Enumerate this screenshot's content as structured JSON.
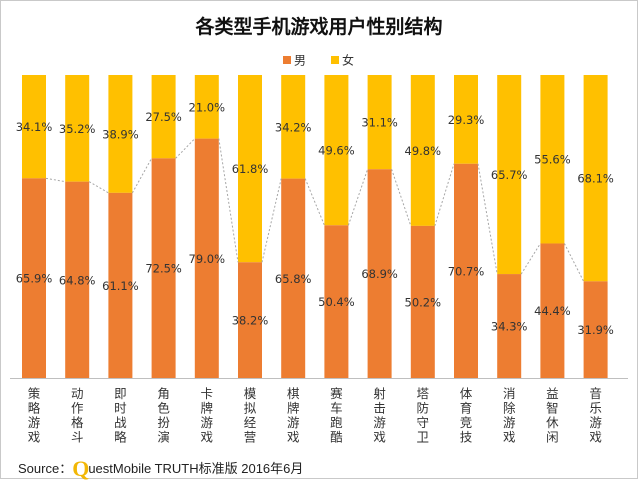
{
  "chart_data": {
    "type": "bar",
    "stacked": true,
    "percent": true,
    "title": "各类型手机游戏用户性别结构",
    "categories": [
      "策略游戏",
      "动作格斗",
      "即时战略",
      "角色扮演",
      "卡牌游戏",
      "模拟经营",
      "棋牌游戏",
      "赛车跑酷",
      "射击游戏",
      "塔防守卫",
      "体育竞技",
      "消除游戏",
      "益智休闲",
      "音乐游戏"
    ],
    "series": [
      {
        "name": "男",
        "values": [
          65.9,
          64.8,
          61.1,
          72.5,
          79.0,
          38.2,
          65.8,
          50.4,
          68.9,
          50.2,
          70.7,
          34.3,
          44.4,
          31.9
        ],
        "labels": [
          "65.9%",
          "64.8%",
          "61.1%",
          "72.5%",
          "79.0%",
          "38.2%",
          "65.8%",
          "50.4%",
          "68.9%",
          "50.2%",
          "70.7%",
          "34.3%",
          "44.4%",
          "31.9%"
        ]
      },
      {
        "name": "女",
        "values": [
          34.1,
          35.2,
          38.9,
          27.5,
          21.0,
          61.8,
          34.2,
          49.6,
          31.1,
          49.8,
          29.3,
          65.7,
          55.6,
          68.1
        ],
        "labels": [
          "34.1%",
          "35.2%",
          "38.9%",
          "27.5%",
          "21.0%",
          "61.8%",
          "34.2%",
          "49.6%",
          "31.1%",
          "49.8%",
          "29.3%",
          "65.7%",
          "55.6%",
          "68.1%"
        ]
      }
    ],
    "ylim": [
      0,
      100
    ],
    "legend_position": "top-center",
    "colors": {
      "male": "#ed7d31",
      "female": "#ffc000",
      "connector": "#a6a6a6"
    }
  },
  "footer": {
    "source_label": "Source：",
    "q": "Q",
    "rest": "uestMobile TRUTH标准版 2016年6月"
  }
}
